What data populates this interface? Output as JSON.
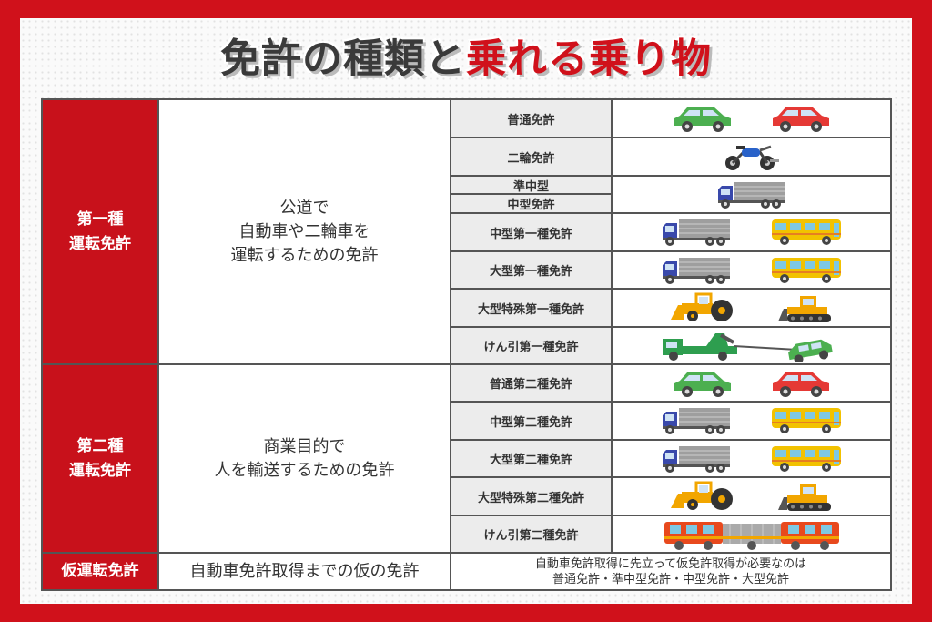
{
  "title": {
    "part1": "免許の種類と",
    "part2": "乗れる乗り物"
  },
  "colors": {
    "frame": "#d0111b",
    "category_bg": "#c8111b",
    "license_bg": "#ececec"
  },
  "groups": [
    {
      "category": "第一種\n運転免許",
      "description": "公道で\n自動車や二輪車を\n運転するための免許"
    },
    {
      "category": "第二種\n運転免許",
      "description": "商業目的で\n人を輸送するための免許"
    },
    {
      "category": "仮運転免許",
      "description": "自動車免許取得までの仮の免許",
      "note": "自動車免許取得に先立って仮免許取得が必要なのは\n普通免許・準中型免許・中型免許・大型免許"
    }
  ],
  "rows": [
    {
      "license": "普通免許",
      "vehicles": [
        "car-green-icon",
        "car-red-icon"
      ]
    },
    {
      "license": "二輪免許",
      "vehicles": [
        "motorcycle-icon"
      ]
    },
    {
      "license": "準中型",
      "license2": "中型免許",
      "vehicles": [
        "truck-icon"
      ]
    },
    {
      "license": "中型第一種免許",
      "vehicles": [
        "truck-icon",
        "bus-icon"
      ]
    },
    {
      "license": "大型第一種免許",
      "vehicles": [
        "truck-icon",
        "bus-icon"
      ]
    },
    {
      "license": "大型特殊第一種免許",
      "vehicles": [
        "tractor-icon",
        "bulldozer-icon"
      ]
    },
    {
      "license": "けん引第一種免許",
      "vehicles": [
        "tow-truck-icon"
      ]
    },
    {
      "license": "普通第二種免許",
      "vehicles": [
        "car-green-icon",
        "car-red-icon"
      ]
    },
    {
      "license": "中型第二種免許",
      "vehicles": [
        "truck-icon",
        "bus-icon"
      ]
    },
    {
      "license": "大型第二種免許",
      "vehicles": [
        "truck-icon",
        "bus-icon"
      ]
    },
    {
      "license": "大型特殊第二種免許",
      "vehicles": [
        "tractor-icon",
        "bulldozer-icon"
      ]
    },
    {
      "license": "けん引第二種免許",
      "vehicles": [
        "train-icon"
      ]
    }
  ]
}
